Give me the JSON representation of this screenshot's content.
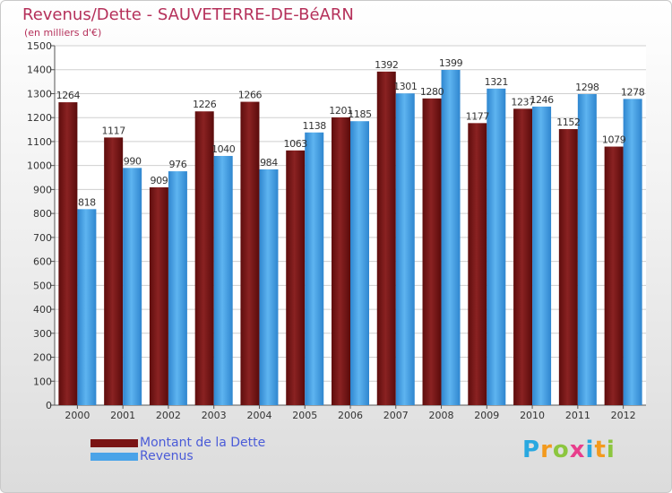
{
  "header": {
    "title": "Revenus/Dette - SAUVETERRE-DE-BéARN",
    "subtitle": "(en milliers d'€)"
  },
  "chart_data": {
    "type": "bar",
    "title": "Revenus/Dette - SAUVETERRE-DE-BéARN",
    "subtitle": "(en milliers d'€)",
    "xlabel": "",
    "ylabel": "",
    "categories": [
      "2000",
      "2001",
      "2002",
      "2003",
      "2004",
      "2005",
      "2006",
      "2007",
      "2008",
      "2009",
      "2010",
      "2011",
      "2012"
    ],
    "series": [
      {
        "name": "Montant de la Dette",
        "color": "#7a1414",
        "values": [
          1264,
          1117,
          909,
          1226,
          1266,
          1063,
          1201,
          1392,
          1280,
          1177,
          1237,
          1152,
          1079
        ]
      },
      {
        "name": "Revenus",
        "color": "#4aa3e8",
        "values": [
          818,
          990,
          976,
          1040,
          984,
          1138,
          1185,
          1301,
          1399,
          1321,
          1246,
          1298,
          1278
        ]
      }
    ],
    "yticks": [
      0,
      100,
      200,
      300,
      400,
      500,
      600,
      700,
      800,
      900,
      1000,
      1100,
      1200,
      1300,
      1400,
      1500
    ],
    "ylim": [
      0,
      1500
    ],
    "grid": true,
    "legend_position": "bottom-left"
  },
  "legend": {
    "items": [
      {
        "label": "Montant de la Dette",
        "color": "#7a1414"
      },
      {
        "label": "Revenus",
        "color": "#4aa3e8"
      }
    ]
  },
  "logo": {
    "text": "Proxiti",
    "letters": [
      {
        "ch": "P",
        "color": "#29a8e0"
      },
      {
        "ch": "r",
        "color": "#f39a1e"
      },
      {
        "ch": "o",
        "color": "#8cc63f"
      },
      {
        "ch": "x",
        "color": "#e83e8c"
      },
      {
        "ch": "i",
        "color": "#29a8e0"
      },
      {
        "ch": "t",
        "color": "#f39a1e"
      },
      {
        "ch": "i",
        "color": "#8cc63f"
      }
    ]
  }
}
